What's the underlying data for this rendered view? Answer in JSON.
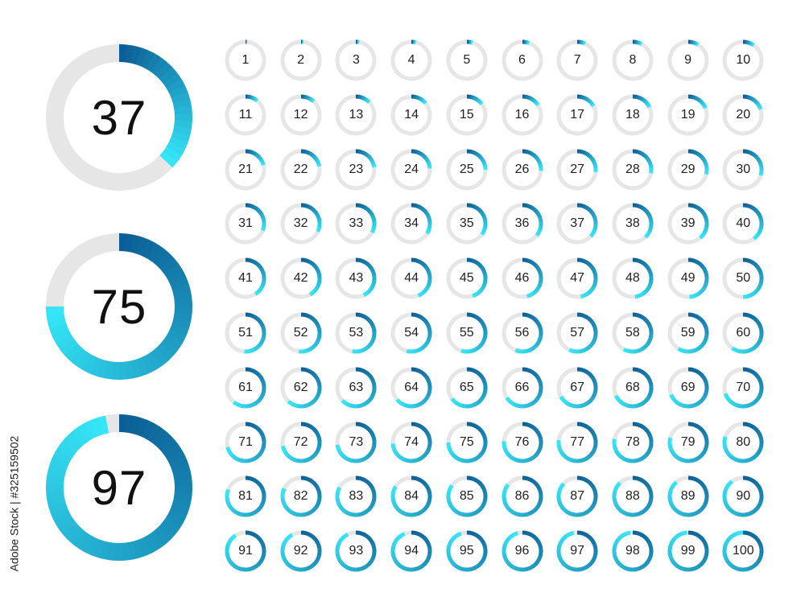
{
  "big_rings": [
    {
      "value": 37,
      "label": "37"
    },
    {
      "value": 75,
      "label": "75"
    },
    {
      "value": 97,
      "label": "97"
    }
  ],
  "small_rings": [
    "1",
    "2",
    "3",
    "4",
    "5",
    "6",
    "7",
    "8",
    "9",
    "10",
    "11",
    "12",
    "13",
    "14",
    "15",
    "16",
    "17",
    "18",
    "19",
    "20",
    "21",
    "22",
    "23",
    "24",
    "25",
    "26",
    "27",
    "28",
    "29",
    "30",
    "31",
    "32",
    "33",
    "34",
    "35",
    "36",
    "37",
    "38",
    "39",
    "40",
    "41",
    "42",
    "43",
    "44",
    "45",
    "46",
    "47",
    "48",
    "49",
    "50",
    "51",
    "52",
    "53",
    "54",
    "55",
    "56",
    "57",
    "58",
    "59",
    "60",
    "61",
    "62",
    "63",
    "64",
    "65",
    "66",
    "67",
    "68",
    "69",
    "70",
    "71",
    "72",
    "73",
    "74",
    "75",
    "76",
    "77",
    "78",
    "79",
    "80",
    "81",
    "82",
    "83",
    "84",
    "85",
    "86",
    "87",
    "88",
    "89",
    "90",
    "91",
    "92",
    "93",
    "94",
    "95",
    "96",
    "97",
    "98",
    "99",
    "100"
  ],
  "colors": {
    "track": "#e6e6e6",
    "progress_start": "#0b5f96",
    "progress_end": "#36e6f8",
    "text": "#111111"
  },
  "watermark": {
    "text": "Adobe Stock | #325159502"
  }
}
